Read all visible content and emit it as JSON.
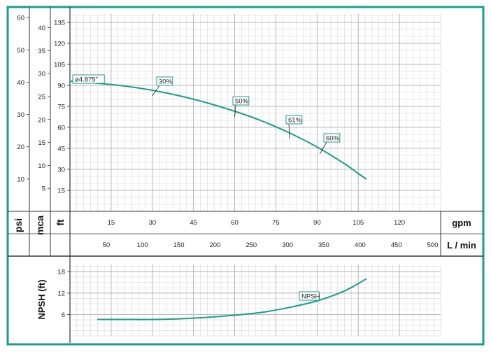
{
  "chart_data": [
    {
      "type": "line",
      "units": {
        "psi": "psi",
        "mca": "mca",
        "ft": "ft",
        "gpm": "gpm",
        "lmin": "L / min"
      },
      "x_gpm_ticks": [
        15,
        30,
        45,
        60,
        75,
        90,
        105,
        120
      ],
      "x_gpm_range": [
        0,
        135
      ],
      "x_lmin_ticks": [
        50,
        100,
        150,
        200,
        250,
        300,
        350,
        400,
        450,
        500
      ],
      "y_ft_ticks": [
        15,
        30,
        45,
        60,
        75,
        90,
        105,
        120,
        135
      ],
      "y_ft_range": [
        0,
        141
      ],
      "y_mca_ticks": [
        5,
        10,
        15,
        20,
        25,
        30,
        35,
        40
      ],
      "y_psi_ticks": [
        10,
        20,
        30,
        40,
        50,
        60
      ],
      "series": [
        {
          "name": "ø4.875\"",
          "color": "#1a9e8a",
          "x": [
            0,
            10,
            20,
            30,
            40,
            50,
            60,
            70,
            80,
            90,
            100,
            105,
            108
          ],
          "y": [
            93,
            91.5,
            89.5,
            86.5,
            82.5,
            77.5,
            71.5,
            64.5,
            56,
            46,
            34,
            27,
            23
          ]
        }
      ],
      "annotations": [
        {
          "text": "ø4.875\"",
          "x": 0,
          "y": 93
        },
        {
          "text": "30%",
          "x": 30,
          "y": 86.5
        },
        {
          "text": "50%",
          "x": 60,
          "y": 71.5
        },
        {
          "text": "61%",
          "x": 80,
          "y": 56
        },
        {
          "text": "60%",
          "x": 91,
          "y": 45
        }
      ],
      "grid": true
    },
    {
      "type": "line",
      "ylabel": "NPSH (ft)",
      "y_ticks": [
        6,
        12,
        18
      ],
      "y_range": [
        0,
        20
      ],
      "x_range": [
        0,
        135
      ],
      "series": [
        {
          "name": "NPSH",
          "color": "#1a9e8a",
          "x": [
            10,
            20,
            30,
            40,
            50,
            60,
            70,
            80,
            90,
            100,
            108
          ],
          "y": [
            4.6,
            4.6,
            4.6,
            4.8,
            5.2,
            5.8,
            6.6,
            8.0,
            9.8,
            12.6,
            16
          ]
        }
      ],
      "annotations": [
        {
          "text": "NPSH",
          "x": 88,
          "y": 12
        }
      ],
      "grid": true
    }
  ]
}
